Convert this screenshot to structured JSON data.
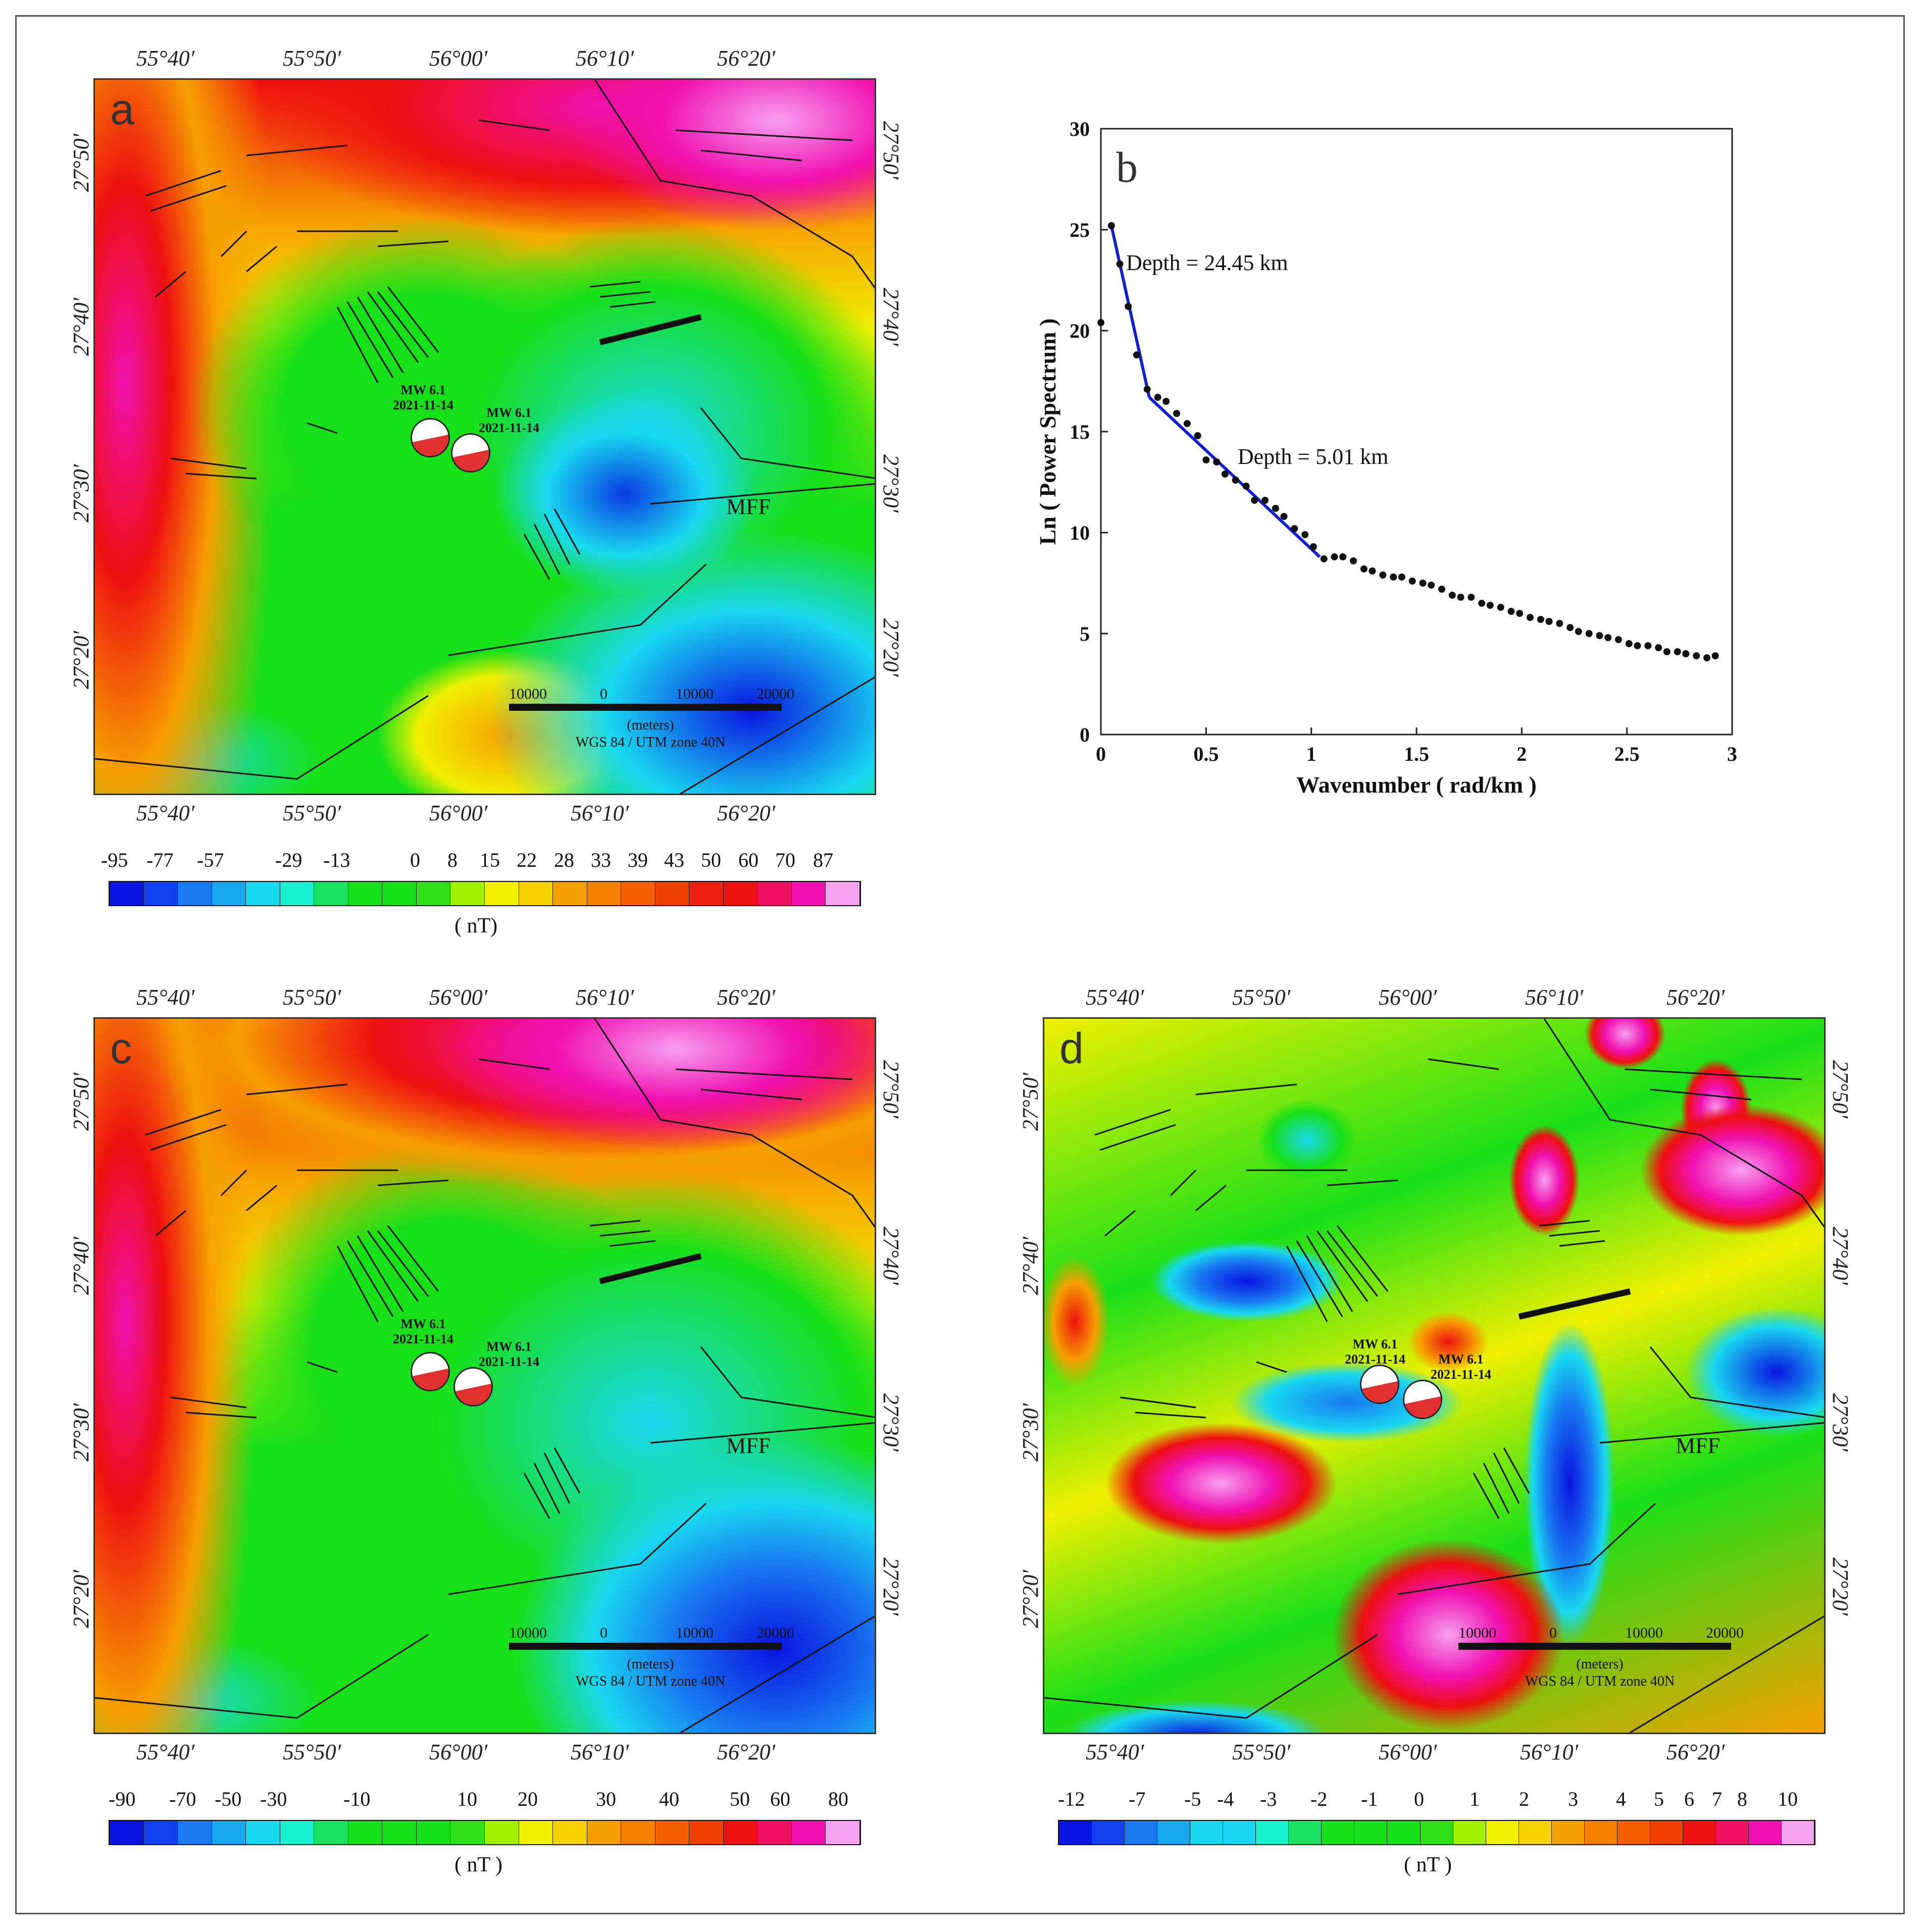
{
  "panels": {
    "a": {
      "letter": "a",
      "top_lon_labels": [
        "55°40′",
        "55°50′",
        "56°00′",
        "56°10′",
        "56°20′"
      ],
      "bottom_lon_labels": [
        "55°40′",
        "55°50′",
        "56°00′",
        "56°10′",
        "56°20′"
      ],
      "lat_labels": [
        "27°50′",
        "27°40′",
        "27°30′",
        "27°20′"
      ],
      "quake1": {
        "mag": "MW 6.1",
        "date": "2021-11-14"
      },
      "quake2": {
        "mag": "MW 6.1",
        "date": "2021-11-14"
      },
      "fault_label": "MFF",
      "scale_numbers": [
        "10000",
        "0",
        "10000",
        "20000"
      ],
      "scale_unit": "(meters)",
      "scale_crs": "WGS 84 / UTM zone 40N",
      "colorbar_ticks": [
        "-95",
        "-77",
        "-57",
        "-29",
        "-13",
        "0",
        "8",
        "15",
        "22",
        "28",
        "33",
        "39",
        "43",
        "50",
        "60",
        "70",
        "87"
      ],
      "colorbar_unit": "( nT)"
    },
    "c": {
      "letter": "c",
      "top_lon_labels": [
        "55°40′",
        "55°50′",
        "56°00′",
        "56°10′",
        "56°20′"
      ],
      "bottom_lon_labels": [
        "55°40′",
        "55°50′",
        "56°00′",
        "56°10′",
        "56°20′"
      ],
      "lat_labels": [
        "27°50′",
        "27°40′",
        "27°30′",
        "27°20′"
      ],
      "quake1": {
        "mag": "MW 6.1",
        "date": "2021-11-14"
      },
      "quake2": {
        "mag": "MW 6.1",
        "date": "2021-11-14"
      },
      "fault_label": "MFF",
      "scale_numbers": [
        "10000",
        "0",
        "10000",
        "20000"
      ],
      "scale_unit": "(meters)",
      "scale_crs": "WGS 84 / UTM zone 40N",
      "colorbar_ticks": [
        "-90",
        "-70",
        "-50",
        "-30",
        "-10",
        "10",
        "20",
        "30",
        "40",
        "50",
        "60",
        "80"
      ],
      "colorbar_unit": "( nT )"
    },
    "d": {
      "letter": "d",
      "top_lon_labels": [
        "55°40′",
        "55°50′",
        "56°00′",
        "56°10′",
        "56°20′"
      ],
      "bottom_lon_labels": [
        "55°40′",
        "55°50′",
        "56°00′",
        "56°10′",
        "56°20′"
      ],
      "lat_labels": [
        "27°50′",
        "27°40′",
        "27°30′",
        "27°20′"
      ],
      "quake1": {
        "mag": "MW 6.1",
        "date": "2021-11-14"
      },
      "quake2": {
        "mag": "MW 6.1",
        "date": "2021-11-14"
      },
      "fault_label": "MFF",
      "scale_numbers": [
        "10000",
        "0",
        "10000",
        "20000"
      ],
      "scale_unit": "(meters)",
      "scale_crs": "WGS 84 / UTM zone 40N",
      "colorbar_ticks": [
        "-12",
        "-7",
        "-5",
        "-4",
        "-3",
        "-2",
        "-1",
        "0",
        "1",
        "2",
        "3",
        "4",
        "5",
        "6",
        "7",
        "8",
        "10"
      ],
      "colorbar_unit": "( nT )"
    }
  },
  "colors": {
    "blue": "#0a14e0",
    "cyan": "#19d8f0",
    "green": "#18e018",
    "yellow": "#f0f000",
    "orange": "#f6a000",
    "red": "#ee1010",
    "magenta": "#f010b0",
    "pink": "#f6a0f0",
    "spectrum_line": "#1020d0"
  },
  "chart_data": {
    "type": "scatter",
    "panel_letter": "b",
    "xlabel": "Wavenumber ( rad/km )",
    "ylabel": "Ln ( Power Spectrum )",
    "xlim": [
      0,
      3
    ],
    "ylim": [
      0,
      30
    ],
    "xticks": [
      0,
      0.5,
      1,
      1.5,
      2,
      2.5,
      3
    ],
    "xtick_labels": [
      "0",
      "0.5",
      "1",
      "1.5",
      "2",
      "2.5",
      "3"
    ],
    "yticks": [
      0,
      5,
      10,
      15,
      20,
      25,
      30
    ],
    "ytick_labels": [
      "0",
      "5",
      "10",
      "15",
      "20",
      "25",
      "30"
    ],
    "points": [
      [
        0.0,
        20.4
      ],
      [
        0.05,
        25.2
      ],
      [
        0.09,
        23.3
      ],
      [
        0.13,
        21.2
      ],
      [
        0.17,
        18.8
      ],
      [
        0.22,
        17.1
      ],
      [
        0.27,
        16.7
      ],
      [
        0.31,
        16.5
      ],
      [
        0.36,
        15.9
      ],
      [
        0.41,
        15.4
      ],
      [
        0.46,
        14.8
      ],
      [
        0.5,
        13.6
      ],
      [
        0.55,
        13.5
      ],
      [
        0.59,
        12.9
      ],
      [
        0.64,
        12.6
      ],
      [
        0.69,
        12.3
      ],
      [
        0.73,
        11.6
      ],
      [
        0.78,
        11.6
      ],
      [
        0.83,
        11.2
      ],
      [
        0.87,
        10.8
      ],
      [
        0.92,
        10.2
      ],
      [
        0.97,
        9.9
      ],
      [
        1.01,
        9.3
      ],
      [
        1.06,
        8.7
      ],
      [
        1.11,
        8.8
      ],
      [
        1.15,
        8.8
      ],
      [
        1.2,
        8.6
      ],
      [
        1.25,
        8.2
      ],
      [
        1.29,
        8.1
      ],
      [
        1.34,
        7.9
      ],
      [
        1.39,
        7.8
      ],
      [
        1.43,
        7.8
      ],
      [
        1.48,
        7.6
      ],
      [
        1.53,
        7.5
      ],
      [
        1.57,
        7.4
      ],
      [
        1.62,
        7.2
      ],
      [
        1.67,
        6.9
      ],
      [
        1.71,
        6.8
      ],
      [
        1.76,
        6.8
      ],
      [
        1.81,
        6.5
      ],
      [
        1.85,
        6.4
      ],
      [
        1.9,
        6.3
      ],
      [
        1.95,
        6.1
      ],
      [
        1.99,
        6.0
      ],
      [
        2.04,
        5.8
      ],
      [
        2.09,
        5.7
      ],
      [
        2.13,
        5.6
      ],
      [
        2.18,
        5.5
      ],
      [
        2.23,
        5.3
      ],
      [
        2.27,
        5.1
      ],
      [
        2.32,
        5.0
      ],
      [
        2.37,
        4.9
      ],
      [
        2.41,
        4.8
      ],
      [
        2.46,
        4.7
      ],
      [
        2.51,
        4.5
      ],
      [
        2.55,
        4.4
      ],
      [
        2.6,
        4.4
      ],
      [
        2.65,
        4.3
      ],
      [
        2.69,
        4.1
      ],
      [
        2.74,
        4.1
      ],
      [
        2.78,
        4.0
      ],
      [
        2.83,
        3.9
      ],
      [
        2.88,
        3.8
      ],
      [
        2.92,
        3.9
      ]
    ],
    "fit_lines": [
      {
        "name": "Depth = 24.45 km",
        "points": [
          [
            0.05,
            25.2
          ],
          [
            0.23,
            16.7
          ]
        ]
      },
      {
        "name": "Depth = 5.01 km",
        "points": [
          [
            0.23,
            16.7
          ],
          [
            1.04,
            8.8
          ]
        ]
      }
    ],
    "annotations": [
      "Depth = 24.45 km",
      "Depth = 5.01 km"
    ]
  }
}
